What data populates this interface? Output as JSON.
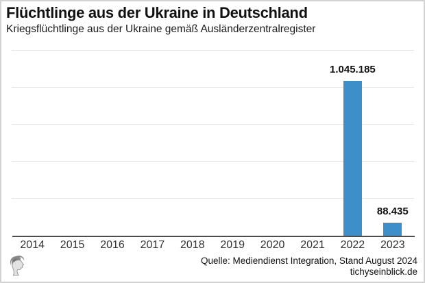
{
  "header": {
    "title": "Flüchtlinge aus der Ukraine in Deutschland",
    "subtitle": "Kriegsflüchtlinge aus der Ukraine gemäß Ausländerzentralregister"
  },
  "chart_data": {
    "type": "bar",
    "title": "Flüchtlinge aus der Ukraine in Deutschland",
    "subtitle": "Kriegsflüchtlinge aus der Ukraine gemäß Ausländerzentralregister",
    "categories": [
      "2014",
      "2015",
      "2016",
      "2017",
      "2018",
      "2019",
      "2020",
      "2021",
      "2022",
      "2023"
    ],
    "values": [
      0,
      0,
      0,
      0,
      0,
      0,
      0,
      0,
      1045185,
      88435
    ],
    "bar_labels": [
      null,
      null,
      null,
      null,
      null,
      null,
      null,
      null,
      "1.045.185",
      "88.435"
    ],
    "xlabel": "",
    "ylabel": "",
    "ylim": [
      0,
      1250000
    ],
    "grid_step": 250000,
    "grid": true,
    "y_tick_labels_visible": false,
    "legend_position": "none",
    "bar_color": "#3d8ec9"
  },
  "colors": {
    "bar": "#3d8ec9",
    "gridline": "#e7e7e7",
    "axis": "#4d4d4d",
    "tick_text": "#333333",
    "frame_border": "#d2d2d2"
  },
  "footer": {
    "source": "Quelle: Mediendienst Integration, Stand August 2024",
    "website": "tichyseinblick.de",
    "logo_icon": "classical-head-logo"
  }
}
